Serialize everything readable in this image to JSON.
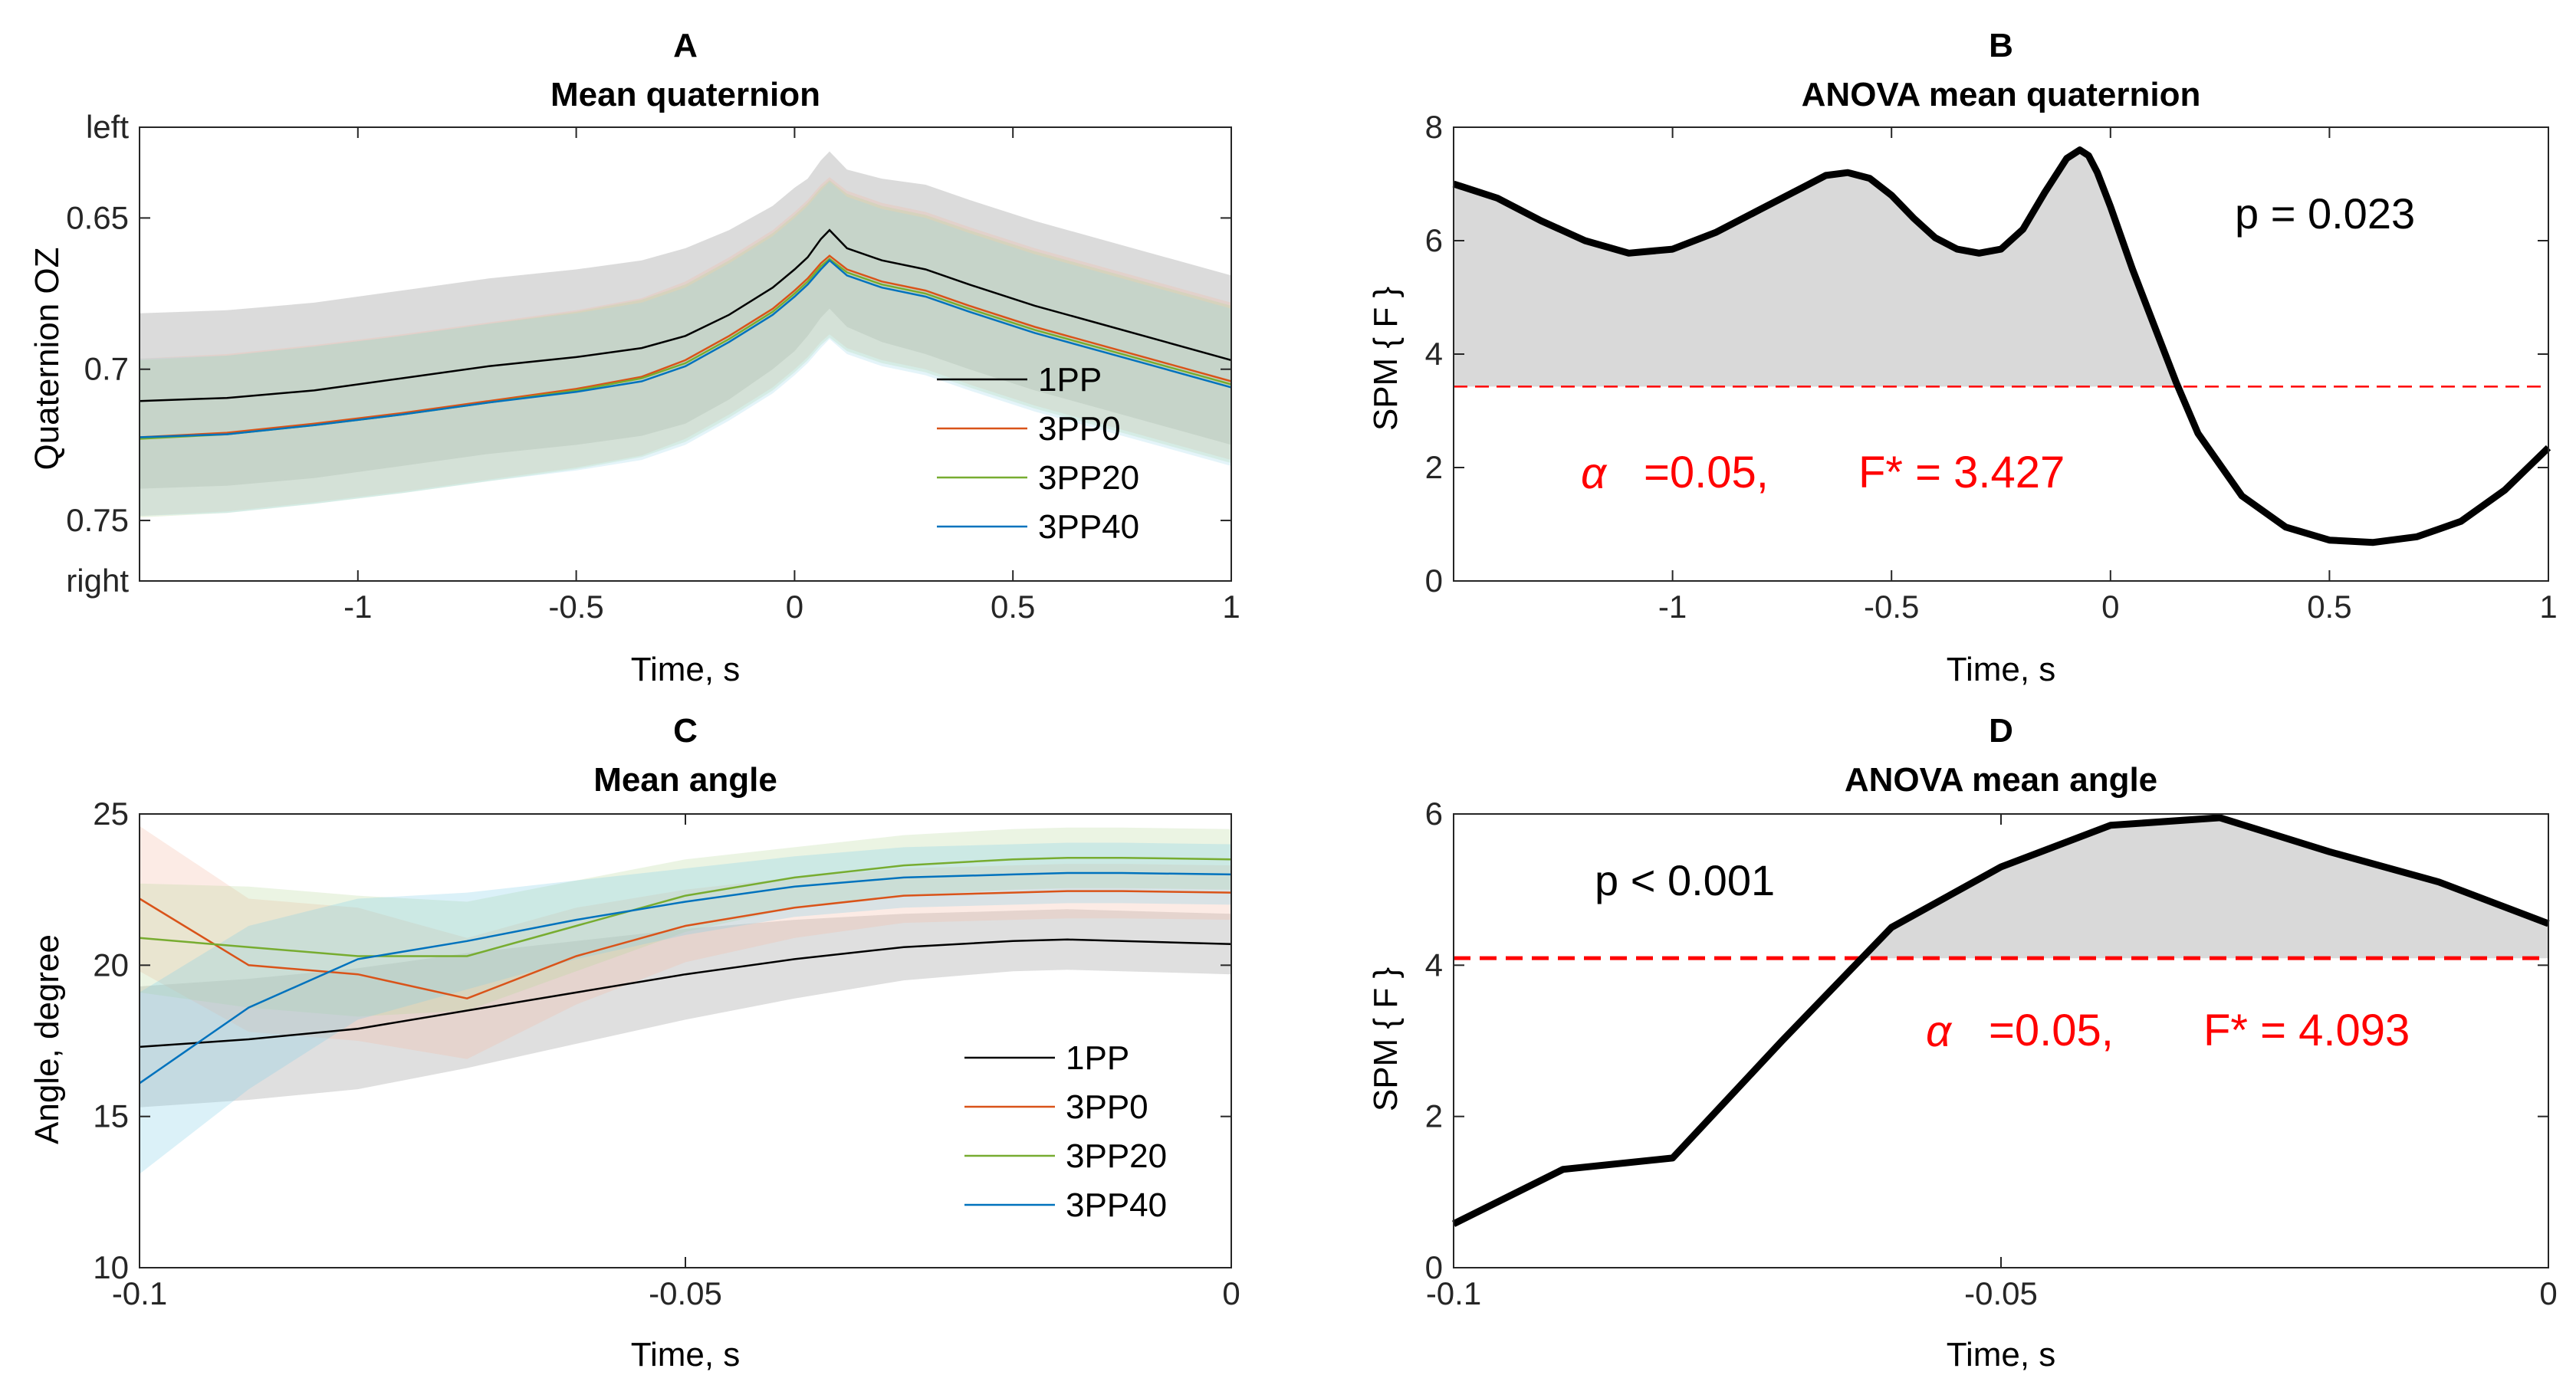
{
  "chart_data": [
    {
      "panel": "A",
      "type": "line",
      "panel_label": "A",
      "title": "Mean quaternion",
      "xlabel": "Time, s",
      "ylabel": "Quaternion OZ",
      "xlim": [
        -1.5,
        1.0
      ],
      "ylim": [
        0.77,
        0.62
      ],
      "y_reversed": true,
      "xticks": [
        -1,
        -0.5,
        0,
        0.5,
        1
      ],
      "xtick_labels": [
        "-1",
        "-0.5",
        "0",
        "0.5",
        "1"
      ],
      "yticks": [
        0.62,
        0.65,
        0.7,
        0.75,
        0.77
      ],
      "ytick_labels": [
        "left",
        "0.65",
        "0.7",
        "0.75",
        "right"
      ],
      "legend": [
        "1PP",
        "3PP0",
        "3PP20",
        "3PP40"
      ],
      "legend_position": "bottom-right",
      "x": [
        -1.5,
        -1.3,
        -1.1,
        -0.9,
        -0.7,
        -0.5,
        -0.35,
        -0.25,
        -0.15,
        -0.05,
        0.0,
        0.03,
        0.06,
        0.08,
        0.12,
        0.2,
        0.3,
        0.4,
        0.55,
        0.7,
        0.85,
        1.0
      ],
      "series": [
        {
          "name": "1PP",
          "color": "#000000",
          "band_color": "#7f7f7f",
          "values": [
            0.7105,
            0.7095,
            0.707,
            0.703,
            0.699,
            0.696,
            0.693,
            0.689,
            0.682,
            0.673,
            0.667,
            0.663,
            0.657,
            0.654,
            0.66,
            0.664,
            0.667,
            0.672,
            0.679,
            0.685,
            0.691,
            0.697
          ],
          "band": [
            0.029,
            0.029,
            0.029,
            0.029,
            0.029,
            0.029,
            0.029,
            0.029,
            0.028,
            0.027,
            0.027,
            0.026,
            0.026,
            0.026,
            0.026,
            0.027,
            0.028,
            0.028,
            0.028,
            0.028,
            0.028,
            0.028
          ]
        },
        {
          "name": "3PP0",
          "color": "#d95319",
          "band_color": "#f4b8a0",
          "values": [
            0.7225,
            0.721,
            0.718,
            0.7145,
            0.7105,
            0.7065,
            0.7025,
            0.697,
            0.689,
            0.68,
            0.674,
            0.67,
            0.665,
            0.6625,
            0.667,
            0.671,
            0.674,
            0.679,
            0.686,
            0.692,
            0.698,
            0.704
          ],
          "band": [
            0.026,
            0.026,
            0.026,
            0.026,
            0.026,
            0.026,
            0.026,
            0.026,
            0.026,
            0.026,
            0.026,
            0.026,
            0.026,
            0.026,
            0.026,
            0.026,
            0.026,
            0.026,
            0.026,
            0.026,
            0.026,
            0.026
          ]
        },
        {
          "name": "3PP20",
          "color": "#77ac30",
          "band_color": "#b6d99a",
          "values": [
            0.723,
            0.7215,
            0.7185,
            0.715,
            0.711,
            0.707,
            0.703,
            0.698,
            0.69,
            0.681,
            0.675,
            0.671,
            0.666,
            0.6635,
            0.668,
            0.672,
            0.675,
            0.68,
            0.687,
            0.693,
            0.699,
            0.705
          ],
          "band": [
            0.026,
            0.026,
            0.026,
            0.026,
            0.026,
            0.026,
            0.026,
            0.026,
            0.026,
            0.026,
            0.026,
            0.026,
            0.026,
            0.026,
            0.026,
            0.026,
            0.026,
            0.026,
            0.026,
            0.026,
            0.026,
            0.026
          ]
        },
        {
          "name": "3PP40",
          "color": "#0072bd",
          "band_color": "#9fd6e8",
          "values": [
            0.7225,
            0.7215,
            0.7185,
            0.715,
            0.711,
            0.7075,
            0.704,
            0.699,
            0.691,
            0.682,
            0.676,
            0.672,
            0.667,
            0.664,
            0.669,
            0.673,
            0.676,
            0.681,
            0.688,
            0.694,
            0.7,
            0.706
          ],
          "band": [
            0.026,
            0.026,
            0.026,
            0.026,
            0.026,
            0.026,
            0.026,
            0.026,
            0.026,
            0.026,
            0.026,
            0.026,
            0.026,
            0.026,
            0.026,
            0.026,
            0.026,
            0.026,
            0.026,
            0.026,
            0.026,
            0.026
          ]
        }
      ]
    },
    {
      "panel": "B",
      "type": "area",
      "panel_label": "B",
      "title": "ANOVA mean quaternion",
      "xlabel": "Time, s",
      "ylabel": "SPM { F }",
      "xlim": [
        -1.5,
        1.0
      ],
      "ylim": [
        0,
        8
      ],
      "xticks": [
        -1,
        -0.5,
        0,
        0.5,
        1
      ],
      "xtick_labels": [
        "-1",
        "-0.5",
        "0",
        "0.5",
        "1"
      ],
      "yticks": [
        0,
        2,
        4,
        6,
        8
      ],
      "ytick_labels": [
        "0",
        "2",
        "4",
        "6",
        "8"
      ],
      "x": [
        -1.5,
        -1.4,
        -1.3,
        -1.2,
        -1.1,
        -1.0,
        -0.9,
        -0.8,
        -0.7,
        -0.65,
        -0.6,
        -0.55,
        -0.5,
        -0.45,
        -0.4,
        -0.35,
        -0.3,
        -0.25,
        -0.2,
        -0.15,
        -0.1,
        -0.07,
        -0.05,
        -0.03,
        0.0,
        0.05,
        0.1,
        0.15,
        0.2,
        0.3,
        0.4,
        0.5,
        0.6,
        0.7,
        0.8,
        0.9,
        1.0
      ],
      "values": [
        7.0,
        6.75,
        6.35,
        6.0,
        5.78,
        5.85,
        6.15,
        6.55,
        6.95,
        7.15,
        7.2,
        7.1,
        6.8,
        6.4,
        6.05,
        5.85,
        5.78,
        5.85,
        6.2,
        6.85,
        7.45,
        7.6,
        7.5,
        7.2,
        6.6,
        5.5,
        4.5,
        3.5,
        2.6,
        1.5,
        0.95,
        0.72,
        0.68,
        0.78,
        1.05,
        1.6,
        2.35
      ],
      "threshold": 3.427,
      "threshold_color": "#ff0000",
      "shade_color": "#d9d9d9",
      "p_label": "p = 0.023",
      "alpha_symbol": "α",
      "alpha_text": "=0.05,",
      "fstar_text": "F* = 3.427"
    },
    {
      "panel": "C",
      "type": "line",
      "panel_label": "C",
      "title": "Mean angle",
      "xlabel": "Time, s",
      "ylabel": "Angle, degree",
      "xlim": [
        -0.1,
        0.0
      ],
      "ylim": [
        10,
        25
      ],
      "xticks": [
        -0.1,
        -0.05,
        0
      ],
      "xtick_labels": [
        "-0.1",
        "-0.05",
        "0"
      ],
      "yticks": [
        10,
        15,
        20,
        25
      ],
      "ytick_labels": [
        "10",
        "15",
        "20",
        "25"
      ],
      "legend": [
        "1PP",
        "3PP0",
        "3PP20",
        "3PP40"
      ],
      "legend_position": "bottom-right",
      "x": [
        -0.1,
        -0.09,
        -0.08,
        -0.07,
        -0.06,
        -0.05,
        -0.04,
        -0.03,
        -0.02,
        -0.015,
        -0.01,
        0.0
      ],
      "series": [
        {
          "name": "1PP",
          "color": "#000000",
          "band_color": "#8c8c8c",
          "values": [
            17.3,
            17.55,
            17.9,
            18.5,
            19.1,
            19.7,
            20.2,
            20.6,
            20.8,
            20.85,
            20.8,
            20.7
          ],
          "band": [
            2.0,
            2.0,
            2.0,
            1.9,
            1.7,
            1.5,
            1.3,
            1.1,
            1.0,
            1.0,
            1.0,
            1.0
          ]
        },
        {
          "name": "3PP0",
          "color": "#d95319",
          "band_color": "#f4b8a0",
          "values": [
            22.2,
            20.0,
            19.7,
            18.9,
            20.3,
            21.3,
            21.9,
            22.3,
            22.4,
            22.45,
            22.45,
            22.4
          ],
          "band": [
            2.4,
            2.2,
            2.2,
            2.0,
            1.6,
            1.2,
            1.0,
            0.9,
            0.9,
            0.9,
            0.9,
            0.9
          ]
        },
        {
          "name": "3PP20",
          "color": "#77ac30",
          "band_color": "#b6d99a",
          "values": [
            20.9,
            20.6,
            20.3,
            20.3,
            21.3,
            22.3,
            22.9,
            23.3,
            23.5,
            23.55,
            23.55,
            23.5
          ],
          "band": [
            1.8,
            2.0,
            2.0,
            1.8,
            1.5,
            1.2,
            1.0,
            1.0,
            1.0,
            1.0,
            1.0,
            1.0
          ]
        },
        {
          "name": "3PP40",
          "color": "#0072bd",
          "band_color": "#7ecbe6",
          "values": [
            16.1,
            18.6,
            20.2,
            20.8,
            21.5,
            22.1,
            22.6,
            22.9,
            23.0,
            23.05,
            23.05,
            23.0
          ],
          "band": [
            3.0,
            2.7,
            2.0,
            1.6,
            1.3,
            1.1,
            1.0,
            1.0,
            1.0,
            1.0,
            1.0,
            1.0
          ]
        }
      ]
    },
    {
      "panel": "D",
      "type": "area",
      "panel_label": "D",
      "title": "ANOVA mean angle",
      "xlabel": "Time, s",
      "ylabel": "SPM { F }",
      "xlim": [
        -0.1,
        0.0
      ],
      "ylim": [
        0,
        6
      ],
      "xticks": [
        -0.1,
        -0.05,
        0
      ],
      "xtick_labels": [
        "-0.1",
        "-0.05",
        "0"
      ],
      "yticks": [
        0,
        2,
        4,
        6
      ],
      "ytick_labels": [
        "0",
        "2",
        "4",
        "6"
      ],
      "x": [
        -0.1,
        -0.09,
        -0.08,
        -0.07,
        -0.06,
        -0.05,
        -0.04,
        -0.03,
        -0.02,
        -0.01,
        0.0
      ],
      "values": [
        0.58,
        1.3,
        1.45,
        3.0,
        4.5,
        5.3,
        5.85,
        5.95,
        5.5,
        5.1,
        4.55
      ],
      "threshold": 4.093,
      "threshold_color": "#ff0000",
      "shade_color": "#d9d9d9",
      "p_label": "p < 0.001",
      "alpha_symbol": "α",
      "alpha_text": "=0.05,",
      "fstar_text": "F* = 4.093"
    }
  ]
}
